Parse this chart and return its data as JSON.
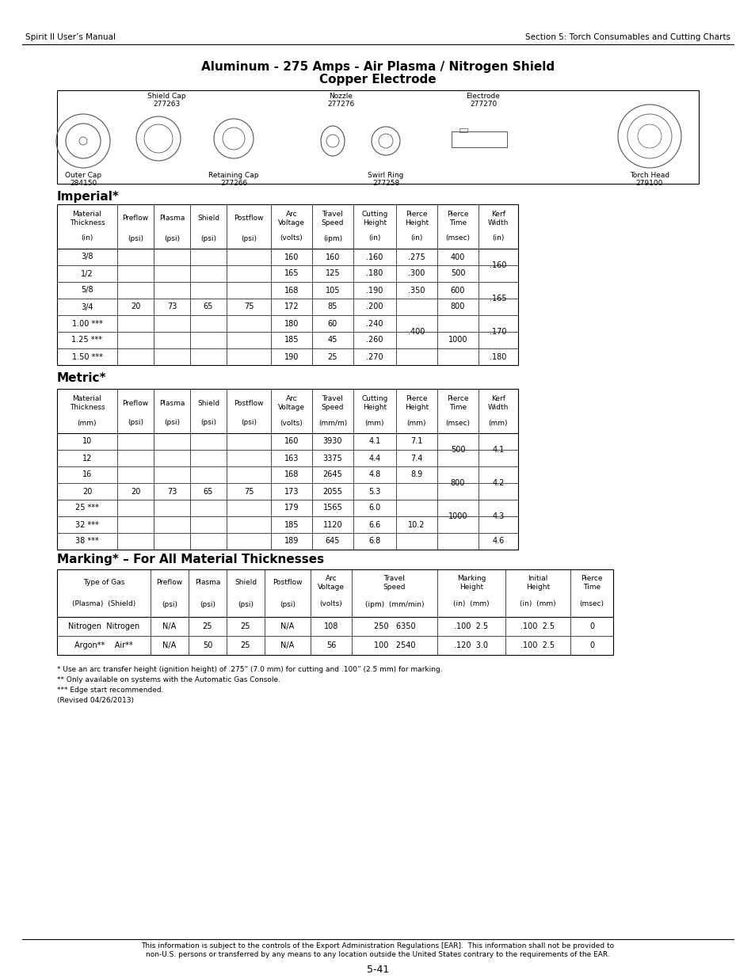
{
  "header_left": "Spirit II User’s Manual",
  "header_right": "Section 5: Torch Consumables and Cutting Charts",
  "main_title_line1": "Aluminum - 275 Amps - Air Plasma / Nitrogen Shield",
  "main_title_line2": "Copper Electrode",
  "imperial_section": "Imperial*",
  "metric_section": "Metric*",
  "marking_section": "Marking* – For All Material Thicknesses",
  "footnotes": [
    "* Use an arc transfer height (ignition height) of .275” (7.0 mm) for cutting and .100” (2.5 mm) for marking.",
    "** Only available on systems with the Automatic Gas Console.",
    "*** Edge start recommended.",
    "(Revised 04/26/2013)"
  ],
  "footer_text": "This information is subject to the controls of the Export Administration Regulations [EAR].  This information shall not be provided to\nnon-U.S. persons or transferred by any means to any location outside the United States contrary to the requirements of the EAR.",
  "page_number": "5-41"
}
